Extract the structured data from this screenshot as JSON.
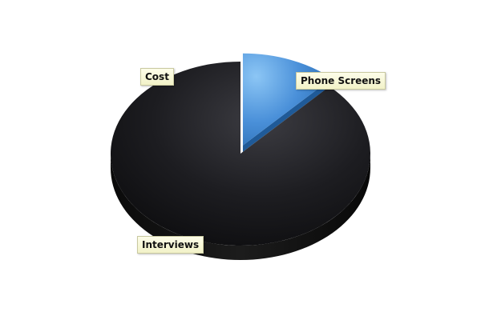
{
  "chart_data": {
    "type": "pie",
    "style": "3d-exploded",
    "slices": [
      {
        "label": "Phone Screens",
        "value": 12,
        "color": "#4a90d9",
        "exploded": true
      },
      {
        "label": "Interviews",
        "value": 88,
        "color": "#1a1a1a",
        "exploded": false
      },
      {
        "label": "Cost",
        "value": 0,
        "color": "#1a1a1a",
        "exploded": false
      }
    ],
    "labels_style": "callout-boxes",
    "legend": "none",
    "title": ""
  }
}
